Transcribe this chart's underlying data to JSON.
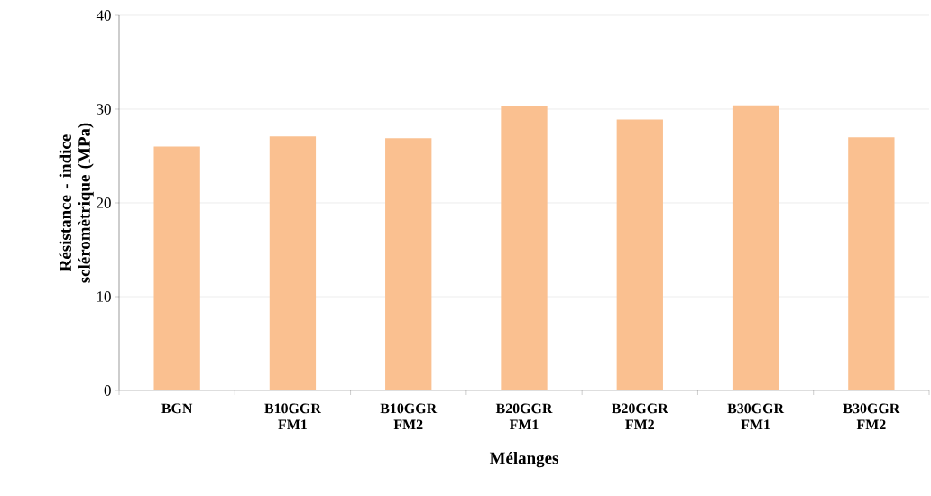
{
  "chart_data": {
    "type": "bar",
    "categories": [
      "BGN",
      "B10GGR FM1",
      "B10GGR FM2",
      "B20GGR FM1",
      "B20GGR FM2",
      "B30GGR FM1",
      "B30GGR FM2"
    ],
    "values": [
      26.0,
      27.1,
      26.9,
      30.3,
      28.9,
      30.4,
      27.0
    ],
    "color": "#fac090",
    "xlabel": "Mélanges",
    "ylabel": "Résistance - indice scléromètrique (MPa)",
    "ylim": [
      0,
      40
    ],
    "yticks": [
      0,
      10,
      20,
      30,
      40
    ],
    "grid": "y"
  }
}
